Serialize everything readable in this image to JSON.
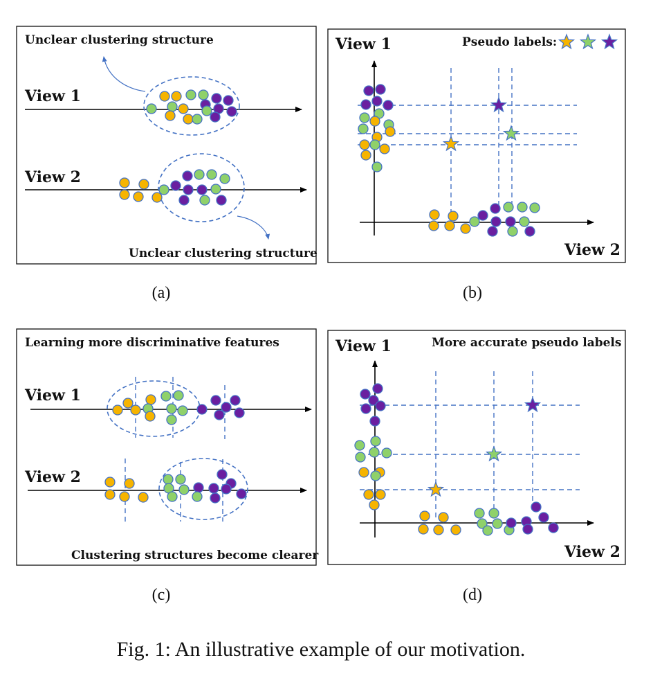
{
  "colors": {
    "orange": "#f6b400",
    "green": "#8fd16a",
    "purple": "#6a1fa0",
    "blue": "#4472c4"
  },
  "panels": {
    "a": {
      "sublabel": "(a)",
      "top_text": "Unclear clustering structure",
      "bottom_text": "Unclear clustering structure",
      "view1": "View 1",
      "view2": "View 2"
    },
    "b": {
      "sublabel": "(b)",
      "yaxis": "View 1",
      "xaxis": "View 2",
      "legend_text": "Pseudo labels:",
      "legend_icons": [
        "orange-star-icon",
        "green-star-icon",
        "purple-star-icon"
      ]
    },
    "c": {
      "sublabel": "(c)",
      "top_text": "Learning more discriminative features",
      "bottom_text": "Clustering structures become clearer",
      "view1": "View 1",
      "view2": "View 2"
    },
    "d": {
      "sublabel": "(d)",
      "yaxis": "View 1",
      "xaxis": "View 2",
      "top_text": "More accurate pseudo labels"
    }
  },
  "caption": "Fig. 1: An illustrative example of our motivation."
}
